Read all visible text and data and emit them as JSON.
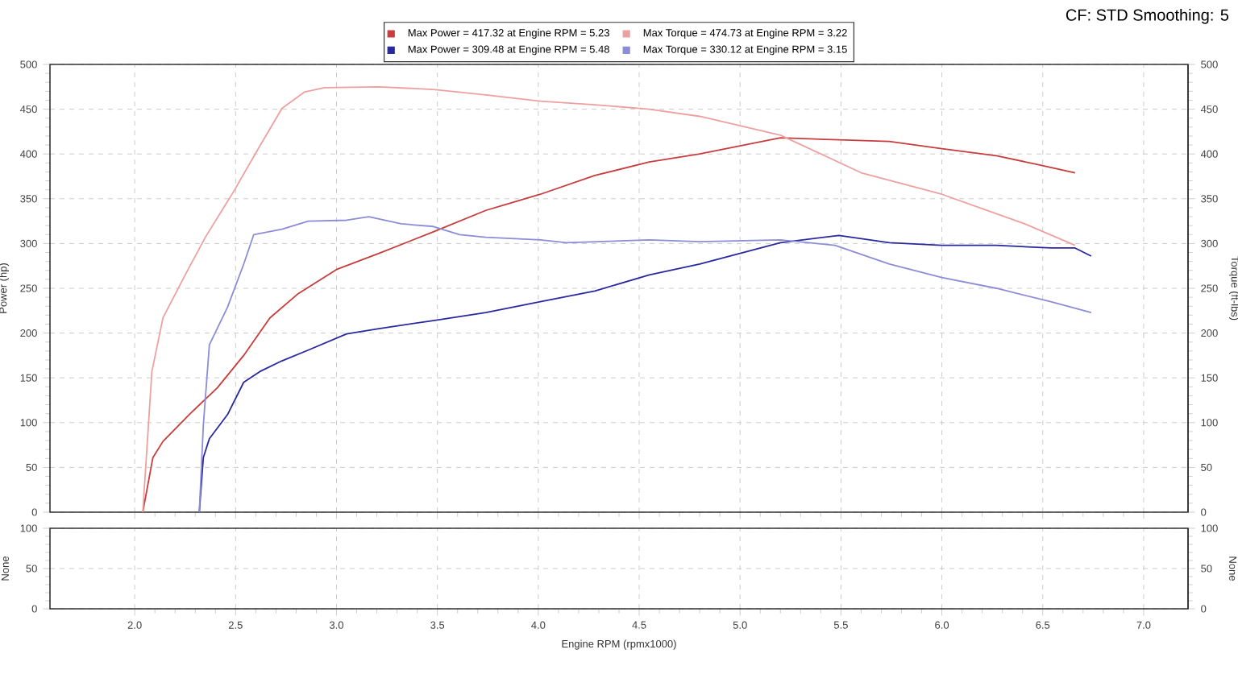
{
  "chart_data": [
    {
      "type": "line",
      "ylabel": "Power (hp)",
      "y2label": "Torque (ft-lbs)",
      "annotations": [
        "CF: STD Smoothing: 5"
      ],
      "xlim": [
        1.58,
        7.22
      ],
      "xticks": [
        {
          "value": 2,
          "label": null
        },
        {
          "value": 2.5,
          "label": null
        },
        {
          "value": 3,
          "label": null
        },
        {
          "value": 3.5,
          "label": null
        },
        {
          "value": 4,
          "label": null
        },
        {
          "value": 4.5,
          "label": null
        },
        {
          "value": 5,
          "label": null
        },
        {
          "value": 5.5,
          "label": null
        },
        {
          "value": 6,
          "label": null
        },
        {
          "value": 6.5,
          "label": null
        },
        {
          "value": 7,
          "label": null
        }
      ],
      "ylim": [
        0,
        500
      ],
      "yticks": [
        0,
        50,
        100,
        150,
        200,
        250,
        300,
        350,
        400,
        450,
        500
      ],
      "y2lim": [
        0,
        500
      ],
      "y2ticks": [
        0,
        50,
        100,
        150,
        200,
        250,
        300,
        350,
        400,
        450,
        500
      ],
      "grid": true,
      "legend": "top",
      "tick_labels": "y",
      "series": [
        {
          "name": "Max Power = 417.32 at Engine RPM = 5.23",
          "color": "#c83c3c",
          "x": [
            2.04,
            2.09,
            2.14,
            2.27,
            2.41,
            2.54,
            2.67,
            2.81,
            3.0,
            3.21,
            3.48,
            3.74,
            4.01,
            4.28,
            4.55,
            4.8,
            5.0,
            5.2,
            5.46,
            5.74,
            6.0,
            6.27,
            6.48,
            6.66
          ],
          "values": [
            0,
            61,
            79,
            109,
            139,
            175,
            217,
            244,
            271,
            289,
            313,
            337,
            355,
            376,
            391,
            400,
            409,
            418,
            416,
            414,
            406,
            398,
            388,
            379
          ]
        },
        {
          "name": "Max Torque = 474.73 at Engine RPM = 3.22",
          "color": "#eea0a0",
          "axis": "y2",
          "x": [
            2.04,
            2.085,
            2.14,
            2.25,
            2.35,
            2.49,
            2.62,
            2.73,
            2.84,
            2.94,
            3.21,
            3.48,
            3.74,
            4.01,
            4.28,
            4.55,
            4.8,
            5.2,
            5.6,
            6.0,
            6.41,
            6.66
          ],
          "values": [
            0,
            157,
            217,
            265,
            307,
            358,
            409,
            451,
            469,
            474,
            475,
            472,
            466,
            459,
            455,
            450,
            442,
            421,
            379,
            355,
            322,
            298
          ]
        },
        {
          "name": "Max Power = 309.48 at Engine RPM = 5.48",
          "color": "#2828a0",
          "x": [
            2.32,
            2.34,
            2.37,
            2.46,
            2.54,
            2.62,
            2.73,
            2.86,
            3.05,
            3.21,
            3.48,
            3.74,
            4.01,
            4.28,
            4.55,
            4.8,
            5.2,
            5.49,
            5.74,
            6.0,
            6.27,
            6.54,
            6.66,
            6.74
          ],
          "values": [
            0,
            61,
            82,
            109,
            145,
            157,
            169,
            181,
            199,
            205,
            214,
            223,
            235,
            247,
            265,
            277,
            301,
            309,
            301,
            298,
            298,
            295,
            295,
            286
          ]
        },
        {
          "name": "Max Torque = 330.12 at Engine RPM = 3.15",
          "color": "#8c8cd8",
          "axis": "y2",
          "x": [
            2.32,
            2.34,
            2.37,
            2.46,
            2.54,
            2.59,
            2.73,
            2.86,
            3.05,
            3.16,
            3.32,
            3.48,
            3.61,
            3.74,
            4.01,
            4.14,
            4.55,
            4.8,
            5.2,
            5.47,
            5.74,
            6.0,
            6.27,
            6.54,
            6.74
          ],
          "values": [
            0,
            97,
            187,
            229,
            277,
            310,
            316,
            325,
            326,
            330,
            322,
            319,
            310,
            307,
            304,
            301,
            304,
            302,
            304,
            298,
            277,
            262,
            250,
            235,
            223
          ]
        }
      ]
    },
    {
      "type": "line",
      "xlabel": "Engine RPM (rpmx1000)",
      "ylabel": "None",
      "y2label": "None",
      "xlim": [
        1.58,
        7.22
      ],
      "xticks": [
        {
          "value": 2,
          "label": "2.0"
        },
        {
          "value": 2.5,
          "label": "2.5"
        },
        {
          "value": 3,
          "label": "3.0"
        },
        {
          "value": 3.5,
          "label": "3.5"
        },
        {
          "value": 4,
          "label": "4.0"
        },
        {
          "value": 4.5,
          "label": "4.5"
        },
        {
          "value": 5,
          "label": "5.0"
        },
        {
          "value": 5.5,
          "label": "5.5"
        },
        {
          "value": 6,
          "label": "6.0"
        },
        {
          "value": 6.5,
          "label": "6.5"
        },
        {
          "value": 7,
          "label": "7.0"
        }
      ],
      "ylim": [
        0,
        100
      ],
      "yticks": [
        0,
        50,
        100
      ],
      "y2lim": [
        0,
        100
      ],
      "y2ticks": [
        0,
        50,
        100
      ],
      "grid": true
    }
  ]
}
